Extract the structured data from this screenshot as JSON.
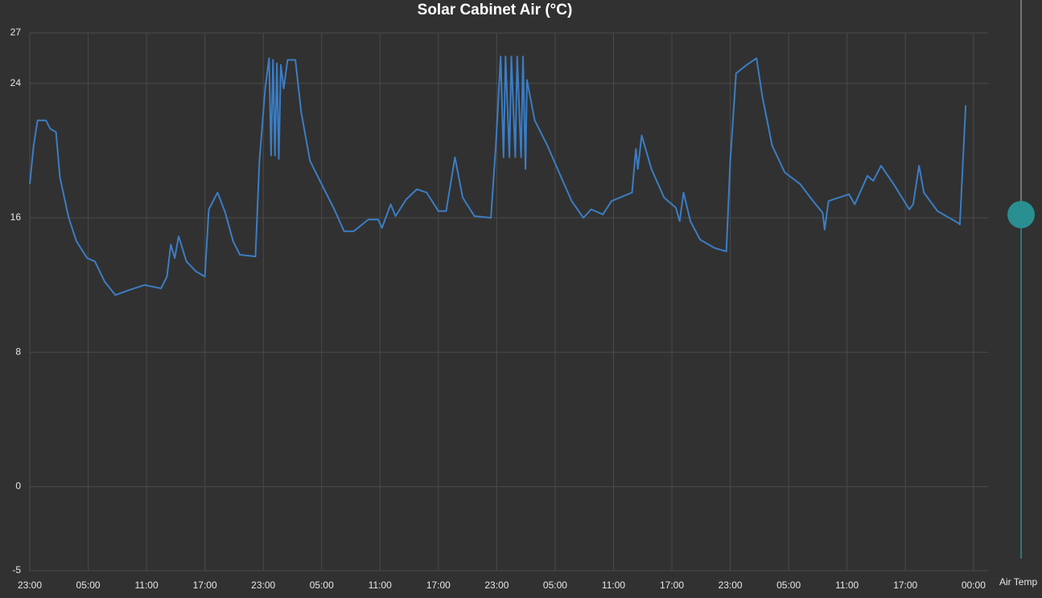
{
  "chart_data": {
    "type": "line",
    "title": "Solar Cabinet Air (°C)",
    "xlim": [
      0,
      98.5
    ],
    "ylim": [
      -5,
      27
    ],
    "yticks": [
      -5,
      0,
      8,
      16,
      24,
      27
    ],
    "xticks": [
      {
        "value": 0,
        "label": "23:00"
      },
      {
        "value": 6,
        "label": "05:00"
      },
      {
        "value": 12,
        "label": "11:00"
      },
      {
        "value": 18,
        "label": "17:00"
      },
      {
        "value": 24,
        "label": "23:00"
      },
      {
        "value": 30,
        "label": "05:00"
      },
      {
        "value": 36,
        "label": "11:00"
      },
      {
        "value": 42,
        "label": "17:00"
      },
      {
        "value": 48,
        "label": "23:00"
      },
      {
        "value": 54,
        "label": "05:00"
      },
      {
        "value": 60,
        "label": "11:00"
      },
      {
        "value": 66,
        "label": "17:00"
      },
      {
        "value": 72,
        "label": "23:00"
      },
      {
        "value": 78,
        "label": "05:00"
      },
      {
        "value": 84,
        "label": "11:00"
      },
      {
        "value": 90,
        "label": "17:00"
      },
      {
        "value": 97,
        "label": "00:00"
      }
    ],
    "grid": true,
    "series": [
      {
        "name": "Air Temp",
        "color": "#3b7dc4",
        "x": [
          0,
          0.4,
          0.8,
          1.65,
          2.1,
          2.7,
          3.1,
          4,
          4.8,
          5.9,
          6.7,
          7.7,
          8.8,
          10.2,
          11.8,
          13.5,
          14.1,
          14.5,
          14.9,
          15.3,
          16.1,
          17.1,
          18,
          18.4,
          19.3,
          20.1,
          20.9,
          21.6,
          23.2,
          23.6,
          24.2,
          24.6,
          24.8,
          25,
          25.2,
          25.4,
          25.6,
          25.8,
          26.1,
          26.5,
          27.3,
          27.9,
          28.8,
          30,
          31.3,
          32.3,
          33.3,
          34.8,
          35.8,
          36.2,
          37.1,
          37.6,
          38.7,
          39.8,
          40.8,
          42,
          42.8,
          43.7,
          44.5,
          45.7,
          47.4,
          47.9,
          48.4,
          48.7,
          48.9,
          49.3,
          49.5,
          49.9,
          50.1,
          50.5,
          50.7,
          50.95,
          51.1,
          51.9,
          53.2,
          54.4,
          55.7,
          56.9,
          57.7,
          58.9,
          59.8,
          61.9,
          62.3,
          62.5,
          62.9,
          63.9,
          65.2,
          66.4,
          66.8,
          67.2,
          67.9,
          68.9,
          70.4,
          71.6,
          72,
          72.6,
          73.7,
          74.7,
          75.3,
          76.3,
          77.6,
          79.2,
          80.5,
          81.5,
          81.7,
          82.1,
          84.2,
          84.8,
          86.1,
          86.7,
          87.5,
          88.8,
          90.4,
          90.8,
          91.4,
          91.9,
          93.3,
          95.4,
          95.6,
          96.2
        ],
        "values": [
          18.0,
          20.3,
          21.8,
          21.8,
          21.3,
          21.1,
          18.4,
          16.0,
          14.6,
          13.6,
          13.4,
          12.2,
          11.4,
          11.7,
          12.0,
          11.8,
          12.5,
          14.4,
          13.6,
          14.9,
          13.4,
          12.8,
          12.5,
          16.5,
          17.5,
          16.3,
          14.6,
          13.8,
          13.7,
          19.4,
          23.7,
          25.5,
          19.7,
          25.4,
          19.7,
          25.2,
          19.5,
          25.1,
          23.7,
          25.4,
          25.4,
          22.3,
          19.4,
          18.0,
          16.5,
          15.2,
          15.2,
          15.9,
          15.9,
          15.4,
          16.8,
          16.1,
          17.1,
          17.7,
          17.5,
          16.4,
          16.4,
          19.6,
          17.2,
          16.1,
          16.0,
          20.3,
          25.6,
          19.6,
          25.6,
          19.6,
          25.6,
          19.6,
          25.6,
          19.6,
          25.6,
          18.9,
          24.2,
          21.8,
          20.3,
          18.7,
          17.0,
          16.0,
          16.5,
          16.2,
          17.0,
          17.5,
          20.1,
          18.9,
          20.9,
          18.9,
          17.2,
          16.6,
          15.8,
          17.5,
          15.8,
          14.7,
          14.2,
          14.0,
          19.4,
          24.6,
          25.1,
          25.5,
          23.2,
          20.3,
          18.7,
          18.0,
          17.0,
          16.3,
          15.3,
          17.0,
          17.4,
          16.8,
          18.5,
          18.2,
          19.1,
          18.0,
          16.5,
          16.8,
          19.1,
          17.5,
          16.4,
          15.7,
          15.6,
          22.7
        ]
      }
    ]
  }
}
